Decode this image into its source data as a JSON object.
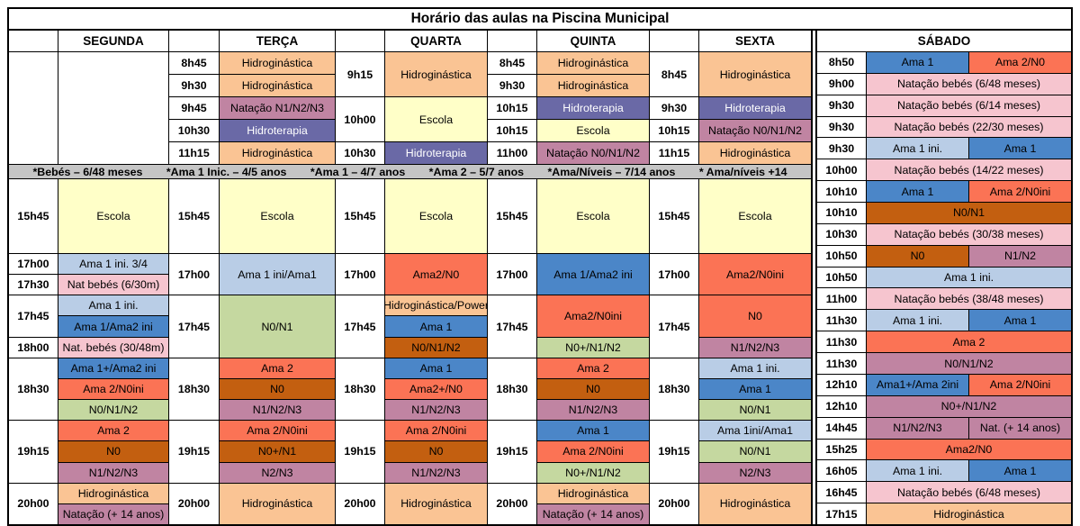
{
  "title": "Horário das aulas na Piscina Municipal",
  "weekday_headers": [
    "SEGUNDA",
    "TERÇA",
    "QUARTA",
    "QUINTA",
    "SEXTA"
  ],
  "saturday_header": "SÁBADO",
  "legend_items": [
    "*Bebés – 6/48 meses",
    "*Ama 1 Inic. – 4/5 anos",
    "*Ama 1 – 4/7 anos",
    "*Ama 2 – 5/7 anos",
    "*Ama/Níveis – 7/14 anos",
    "* Ama/níveis +14"
  ],
  "palette": {
    "white": "#FFFFFF",
    "gray": "#C5C5C5",
    "peach": "#FAC494",
    "yellow": "#FFFFC8",
    "mauve": "#C084A2",
    "purple": "#6A69A6",
    "blue": "#4B86C8",
    "lightblue": "#B9CDE6",
    "coral": "#FB7355",
    "pink": "#F6C5CF",
    "brown": "#C35F10",
    "green": "#C5D8A0"
  },
  "main_cells": [
    {
      "c": 1,
      "r": 2,
      "rs": 5,
      "t": "",
      "k": "white"
    },
    {
      "c": 2,
      "r": 2,
      "rs": 5,
      "t": "",
      "k": "white"
    },
    {
      "c": 3,
      "r": 2,
      "t": "8h45",
      "b": 1
    },
    {
      "c": 3,
      "r": 3,
      "t": "9h30",
      "b": 1
    },
    {
      "c": 3,
      "r": 4,
      "t": "9h45",
      "b": 1
    },
    {
      "c": 3,
      "r": 5,
      "t": "10h30",
      "b": 1
    },
    {
      "c": 3,
      "r": 6,
      "t": "11h15",
      "b": 1
    },
    {
      "c": 4,
      "r": 2,
      "t": "Hidroginástica",
      "k": "peach"
    },
    {
      "c": 4,
      "r": 3,
      "t": "Hidroginástica",
      "k": "peach"
    },
    {
      "c": 4,
      "r": 4,
      "t": "Natação N1/N2/N3",
      "k": "mauve"
    },
    {
      "c": 4,
      "r": 5,
      "t": "Hidroterapia",
      "k": "purple",
      "w": 1
    },
    {
      "c": 4,
      "r": 6,
      "t": "Hidroginástica",
      "k": "peach"
    },
    {
      "c": 5,
      "r": 2,
      "rs": 2,
      "t": "9h15",
      "b": 1
    },
    {
      "c": 5,
      "r": 4,
      "rs": 2,
      "t": "10h00",
      "b": 1
    },
    {
      "c": 5,
      "r": 6,
      "t": "10h30",
      "b": 1
    },
    {
      "c": 6,
      "r": 2,
      "rs": 2,
      "t": "Hidroginástica",
      "k": "peach"
    },
    {
      "c": 6,
      "r": 4,
      "rs": 2,
      "t": "Escola",
      "k": "yellow"
    },
    {
      "c": 6,
      "r": 6,
      "t": "Hidroterapia",
      "k": "purple",
      "w": 1
    },
    {
      "c": 7,
      "r": 2,
      "t": "8h45",
      "b": 1
    },
    {
      "c": 7,
      "r": 3,
      "t": "9h30",
      "b": 1
    },
    {
      "c": 7,
      "r": 4,
      "t": "10h15",
      "b": 1
    },
    {
      "c": 7,
      "r": 5,
      "t": "10h15",
      "b": 1
    },
    {
      "c": 7,
      "r": 6,
      "t": "11h00",
      "b": 1
    },
    {
      "c": 8,
      "r": 2,
      "t": "Hidroginástica",
      "k": "peach"
    },
    {
      "c": 8,
      "r": 3,
      "t": "Hidroginástica",
      "k": "peach"
    },
    {
      "c": 8,
      "r": 4,
      "t": "Hidroterapia",
      "k": "purple",
      "w": 1
    },
    {
      "c": 8,
      "r": 5,
      "t": "Escola",
      "k": "yellow"
    },
    {
      "c": 8,
      "r": 6,
      "t": "Natação N0/N1/N2",
      "k": "mauve"
    },
    {
      "c": 9,
      "r": 2,
      "rs": 2,
      "t": "8h45",
      "b": 1
    },
    {
      "c": 9,
      "r": 4,
      "t": "9h30",
      "b": 1
    },
    {
      "c": 9,
      "r": 5,
      "t": "10h15",
      "b": 1
    },
    {
      "c": 9,
      "r": 6,
      "t": "11h15",
      "b": 1
    },
    {
      "c": 10,
      "r": 2,
      "rs": 2,
      "t": "Hidroginástica",
      "k": "peach"
    },
    {
      "c": 10,
      "r": 4,
      "t": "Hidroterapia",
      "k": "purple",
      "w": 1
    },
    {
      "c": 10,
      "r": 5,
      "t": "Natação N0/N1/N2",
      "k": "mauve"
    },
    {
      "c": 10,
      "r": 6,
      "t": "Hidroginástica",
      "k": "peach"
    },
    {
      "c": 1,
      "r": 8,
      "t": "15h45",
      "b": 1
    },
    {
      "c": 2,
      "r": 8,
      "t": "Escola",
      "k": "yellow"
    },
    {
      "c": 3,
      "r": 8,
      "t": "15h45",
      "b": 1
    },
    {
      "c": 4,
      "r": 8,
      "t": "Escola",
      "k": "yellow"
    },
    {
      "c": 5,
      "r": 8,
      "t": "15h45",
      "b": 1
    },
    {
      "c": 6,
      "r": 8,
      "t": "Escola",
      "k": "yellow"
    },
    {
      "c": 7,
      "r": 8,
      "t": "15h45",
      "b": 1
    },
    {
      "c": 8,
      "r": 8,
      "t": "Escola",
      "k": "yellow"
    },
    {
      "c": 9,
      "r": 8,
      "t": "15h45",
      "b": 1
    },
    {
      "c": 10,
      "r": 8,
      "t": "Escola",
      "k": "yellow"
    },
    {
      "c": 1,
      "r": 9,
      "t": "17h00",
      "b": 1
    },
    {
      "c": 1,
      "r": 10,
      "t": "17h30",
      "b": 1
    },
    {
      "c": 1,
      "r": 11,
      "rs": 2,
      "t": "17h45",
      "b": 1
    },
    {
      "c": 1,
      "r": 13,
      "t": "18h00",
      "b": 1
    },
    {
      "c": 1,
      "r": 14,
      "rs": 3,
      "t": "18h30",
      "b": 1
    },
    {
      "c": 1,
      "r": 17,
      "rs": 3,
      "t": "19h15",
      "b": 1
    },
    {
      "c": 1,
      "r": 20,
      "rs": 2,
      "t": "20h00",
      "b": 1
    },
    {
      "c": 2,
      "r": 9,
      "t": "Ama 1 ini. 3/4",
      "k": "lightblue"
    },
    {
      "c": 2,
      "r": 10,
      "t": "Nat bebés (6/30m)",
      "k": "pink"
    },
    {
      "c": 2,
      "r": 11,
      "t": "Ama 1 ini.",
      "k": "lightblue"
    },
    {
      "c": 2,
      "r": 12,
      "t": "Ama 1/Ama2 ini",
      "k": "blue"
    },
    {
      "c": 2,
      "r": 13,
      "t": "Nat. bebés (30/48m)",
      "k": "pink"
    },
    {
      "c": 2,
      "r": 14,
      "t": "Ama 1+/Ama2 ini",
      "k": "blue"
    },
    {
      "c": 2,
      "r": 15,
      "t": "Ama 2/N0ini",
      "k": "coral"
    },
    {
      "c": 2,
      "r": 16,
      "t": "N0/N1/N2",
      "k": "green"
    },
    {
      "c": 2,
      "r": 17,
      "t": "Ama 2",
      "k": "coral"
    },
    {
      "c": 2,
      "r": 18,
      "t": "N0",
      "k": "brown"
    },
    {
      "c": 2,
      "r": 19,
      "t": "N1/N2/N3",
      "k": "mauve"
    },
    {
      "c": 2,
      "r": 20,
      "t": "Hidroginástica",
      "k": "peach"
    },
    {
      "c": 2,
      "r": 21,
      "t": "Natação (+ 14 anos)",
      "k": "mauve"
    },
    {
      "c": 3,
      "r": 9,
      "rs": 2,
      "t": "17h00",
      "b": 1
    },
    {
      "c": 3,
      "r": 11,
      "rs": 3,
      "t": "17h45",
      "b": 1
    },
    {
      "c": 3,
      "r": 14,
      "rs": 3,
      "t": "18h30",
      "b": 1
    },
    {
      "c": 3,
      "r": 17,
      "rs": 3,
      "t": "19h15",
      "b": 1
    },
    {
      "c": 3,
      "r": 20,
      "rs": 2,
      "t": "20h00",
      "b": 1
    },
    {
      "c": 4,
      "r": 9,
      "rs": 2,
      "t": "Ama 1 ini/Ama1",
      "k": "lightblue"
    },
    {
      "c": 4,
      "r": 11,
      "rs": 3,
      "t": "N0/N1",
      "k": "green"
    },
    {
      "c": 4,
      "r": 14,
      "t": "Ama 2",
      "k": "coral"
    },
    {
      "c": 4,
      "r": 15,
      "t": "N0",
      "k": "brown"
    },
    {
      "c": 4,
      "r": 16,
      "t": "N1/N2/N3",
      "k": "mauve"
    },
    {
      "c": 4,
      "r": 17,
      "t": "Ama 2/N0ini",
      "k": "coral"
    },
    {
      "c": 4,
      "r": 18,
      "t": "N0+/N1",
      "k": "brown"
    },
    {
      "c": 4,
      "r": 19,
      "t": "N2/N3",
      "k": "mauve"
    },
    {
      "c": 4,
      "r": 20,
      "rs": 2,
      "t": "Hidroginástica",
      "k": "peach"
    },
    {
      "c": 5,
      "r": 9,
      "rs": 2,
      "t": "17h00",
      "b": 1
    },
    {
      "c": 5,
      "r": 11,
      "rs": 3,
      "t": "17h45",
      "b": 1
    },
    {
      "c": 5,
      "r": 14,
      "rs": 3,
      "t": "18h30",
      "b": 1
    },
    {
      "c": 5,
      "r": 17,
      "rs": 3,
      "t": "19h15",
      "b": 1
    },
    {
      "c": 5,
      "r": 20,
      "rs": 2,
      "t": "20h00",
      "b": 1
    },
    {
      "c": 6,
      "r": 9,
      "rs": 2,
      "t": "Ama2/N0",
      "k": "coral"
    },
    {
      "c": 6,
      "r": 11,
      "t": "Hidroginástica/Power",
      "k": "peach"
    },
    {
      "c": 6,
      "r": 12,
      "t": "Ama 1",
      "k": "blue"
    },
    {
      "c": 6,
      "r": 13,
      "t": "N0/N1/N2",
      "k": "brown"
    },
    {
      "c": 6,
      "r": 14,
      "t": "Ama 1",
      "k": "blue"
    },
    {
      "c": 6,
      "r": 15,
      "t": "Ama2+/N0",
      "k": "coral"
    },
    {
      "c": 6,
      "r": 16,
      "t": "N1/N2/N3",
      "k": "mauve"
    },
    {
      "c": 6,
      "r": 17,
      "t": "Ama 2/N0ini",
      "k": "coral"
    },
    {
      "c": 6,
      "r": 18,
      "t": "N0",
      "k": "brown"
    },
    {
      "c": 6,
      "r": 19,
      "t": "N1/N2/N3",
      "k": "mauve"
    },
    {
      "c": 6,
      "r": 20,
      "rs": 2,
      "t": "Hidroginástica",
      "k": "peach"
    },
    {
      "c": 7,
      "r": 9,
      "rs": 2,
      "t": "17h00",
      "b": 1
    },
    {
      "c": 7,
      "r": 11,
      "rs": 3,
      "t": "17h45",
      "b": 1
    },
    {
      "c": 7,
      "r": 14,
      "rs": 3,
      "t": "18h30",
      "b": 1
    },
    {
      "c": 7,
      "r": 17,
      "rs": 3,
      "t": "19h15",
      "b": 1
    },
    {
      "c": 7,
      "r": 20,
      "rs": 2,
      "t": "20h00",
      "b": 1
    },
    {
      "c": 8,
      "r": 9,
      "rs": 2,
      "t": "Ama 1/Ama2 ini",
      "k": "blue"
    },
    {
      "c": 8,
      "r": 11,
      "rs": 2,
      "t": "Ama2/N0ini",
      "k": "coral"
    },
    {
      "c": 8,
      "r": 13,
      "t": "N0+/N1/N2",
      "k": "green"
    },
    {
      "c": 8,
      "r": 14,
      "t": "Ama 2",
      "k": "coral"
    },
    {
      "c": 8,
      "r": 15,
      "t": "N0",
      "k": "brown"
    },
    {
      "c": 8,
      "r": 16,
      "t": "N1/N2/N3",
      "k": "mauve"
    },
    {
      "c": 8,
      "r": 17,
      "t": "Ama 1",
      "k": "blue"
    },
    {
      "c": 8,
      "r": 18,
      "t": "Ama 2/N0ini",
      "k": "coral"
    },
    {
      "c": 8,
      "r": 19,
      "t": "N0+/N1/N2",
      "k": "green"
    },
    {
      "c": 8,
      "r": 20,
      "t": "Hidroginástica",
      "k": "peach"
    },
    {
      "c": 8,
      "r": 21,
      "t": "Natação (+ 14 anos)",
      "k": "mauve"
    },
    {
      "c": 9,
      "r": 9,
      "rs": 2,
      "t": "17h00",
      "b": 1
    },
    {
      "c": 9,
      "r": 11,
      "rs": 3,
      "t": "17h45",
      "b": 1
    },
    {
      "c": 9,
      "r": 14,
      "rs": 3,
      "t": "18h30",
      "b": 1
    },
    {
      "c": 9,
      "r": 17,
      "rs": 3,
      "t": "19h15",
      "b": 1
    },
    {
      "c": 9,
      "r": 20,
      "rs": 2,
      "t": "20h00",
      "b": 1
    },
    {
      "c": 10,
      "r": 9,
      "rs": 2,
      "t": "Ama2/N0ini",
      "k": "coral"
    },
    {
      "c": 10,
      "r": 11,
      "rs": 2,
      "t": "N0",
      "k": "coral"
    },
    {
      "c": 10,
      "r": 13,
      "t": "N1/N2/N3",
      "k": "mauve"
    },
    {
      "c": 10,
      "r": 14,
      "t": "Ama 1 ini.",
      "k": "lightblue"
    },
    {
      "c": 10,
      "r": 15,
      "t": "Ama 1",
      "k": "blue"
    },
    {
      "c": 10,
      "r": 16,
      "t": "N0/N1",
      "k": "green"
    },
    {
      "c": 10,
      "r": 17,
      "t": "Ama 1ini/Ama1",
      "k": "lightblue"
    },
    {
      "c": 10,
      "r": 18,
      "t": "N0/N1",
      "k": "green"
    },
    {
      "c": 10,
      "r": 19,
      "t": "N2/N3",
      "k": "mauve"
    },
    {
      "c": 10,
      "r": 20,
      "rs": 2,
      "t": "Hidroginástica",
      "k": "peach"
    }
  ],
  "saturday_rows": [
    {
      "time": "8h50",
      "cells": [
        {
          "t": "Ama 1",
          "k": "blue"
        },
        {
          "t": "Ama 2/N0",
          "k": "coral"
        }
      ]
    },
    {
      "time": "9h00",
      "cells": [
        {
          "t": "Natação bebés (6/48 meses)",
          "k": "pink"
        }
      ]
    },
    {
      "time": "9h30",
      "cells": [
        {
          "t": "Natação bebés (6/14 meses)",
          "k": "pink"
        }
      ]
    },
    {
      "time": "9h30",
      "cells": [
        {
          "t": "Natação bebés (22/30 meses)",
          "k": "pink"
        }
      ]
    },
    {
      "time": "9h30",
      "cells": [
        {
          "t": "Ama 1 ini.",
          "k": "lightblue"
        },
        {
          "t": "Ama 1",
          "k": "blue"
        }
      ]
    },
    {
      "time": "10h00",
      "cells": [
        {
          "t": "Natação bebés (14/22 meses)",
          "k": "pink"
        }
      ]
    },
    {
      "time": "10h10",
      "cells": [
        {
          "t": "Ama 1",
          "k": "blue"
        },
        {
          "t": "Ama 2/N0ini",
          "k": "coral"
        }
      ]
    },
    {
      "time": "10h10",
      "cells": [
        {
          "t": "N0/N1",
          "k": "brown"
        }
      ]
    },
    {
      "time": "10h30",
      "cells": [
        {
          "t": "Natação bebés (30/38 meses)",
          "k": "pink"
        }
      ]
    },
    {
      "time": "10h50",
      "cells": [
        {
          "t": "N0",
          "k": "brown"
        },
        {
          "t": "N1/N2",
          "k": "mauve"
        }
      ]
    },
    {
      "time": "10h50",
      "cells": [
        {
          "t": "Ama 1 ini.",
          "k": "lightblue"
        }
      ]
    },
    {
      "time": "11h00",
      "cells": [
        {
          "t": "Natação bebés (38/48 meses)",
          "k": "pink"
        }
      ]
    },
    {
      "time": "11h30",
      "cells": [
        {
          "t": "Ama 1 ini.",
          "k": "lightblue"
        },
        {
          "t": "Ama 1",
          "k": "blue"
        }
      ]
    },
    {
      "time": "11h30",
      "cells": [
        {
          "t": "Ama 2",
          "k": "coral"
        }
      ]
    },
    {
      "time": "11h30",
      "cells": [
        {
          "t": "N0/N1/N2",
          "k": "mauve"
        }
      ]
    },
    {
      "time": "12h10",
      "cells": [
        {
          "t": "Ama1+/Ama 2ini",
          "k": "blue"
        },
        {
          "t": "Ama 2/N0ini",
          "k": "coral"
        }
      ]
    },
    {
      "time": "12h10",
      "cells": [
        {
          "t": "N0+/N1/N2",
          "k": "mauve"
        }
      ]
    },
    {
      "time": "14h45",
      "cells": [
        {
          "t": "N1/N2/N3",
          "k": "mauve"
        },
        {
          "t": "Nat. (+ 14 anos)",
          "k": "mauve"
        }
      ]
    },
    {
      "time": "15h25",
      "cells": [
        {
          "t": "Ama2/N0",
          "k": "coral"
        }
      ]
    },
    {
      "time": "16h05",
      "cells": [
        {
          "t": "Ama 1 ini.",
          "k": "lightblue"
        },
        {
          "t": "Ama 1",
          "k": "blue"
        }
      ]
    },
    {
      "time": "16h45",
      "cells": [
        {
          "t": "Natação bebés (6/48 meses)",
          "k": "pink"
        }
      ]
    },
    {
      "time": "17h15",
      "cells": [
        {
          "t": "Hidroginástica",
          "k": "peach"
        }
      ]
    }
  ]
}
